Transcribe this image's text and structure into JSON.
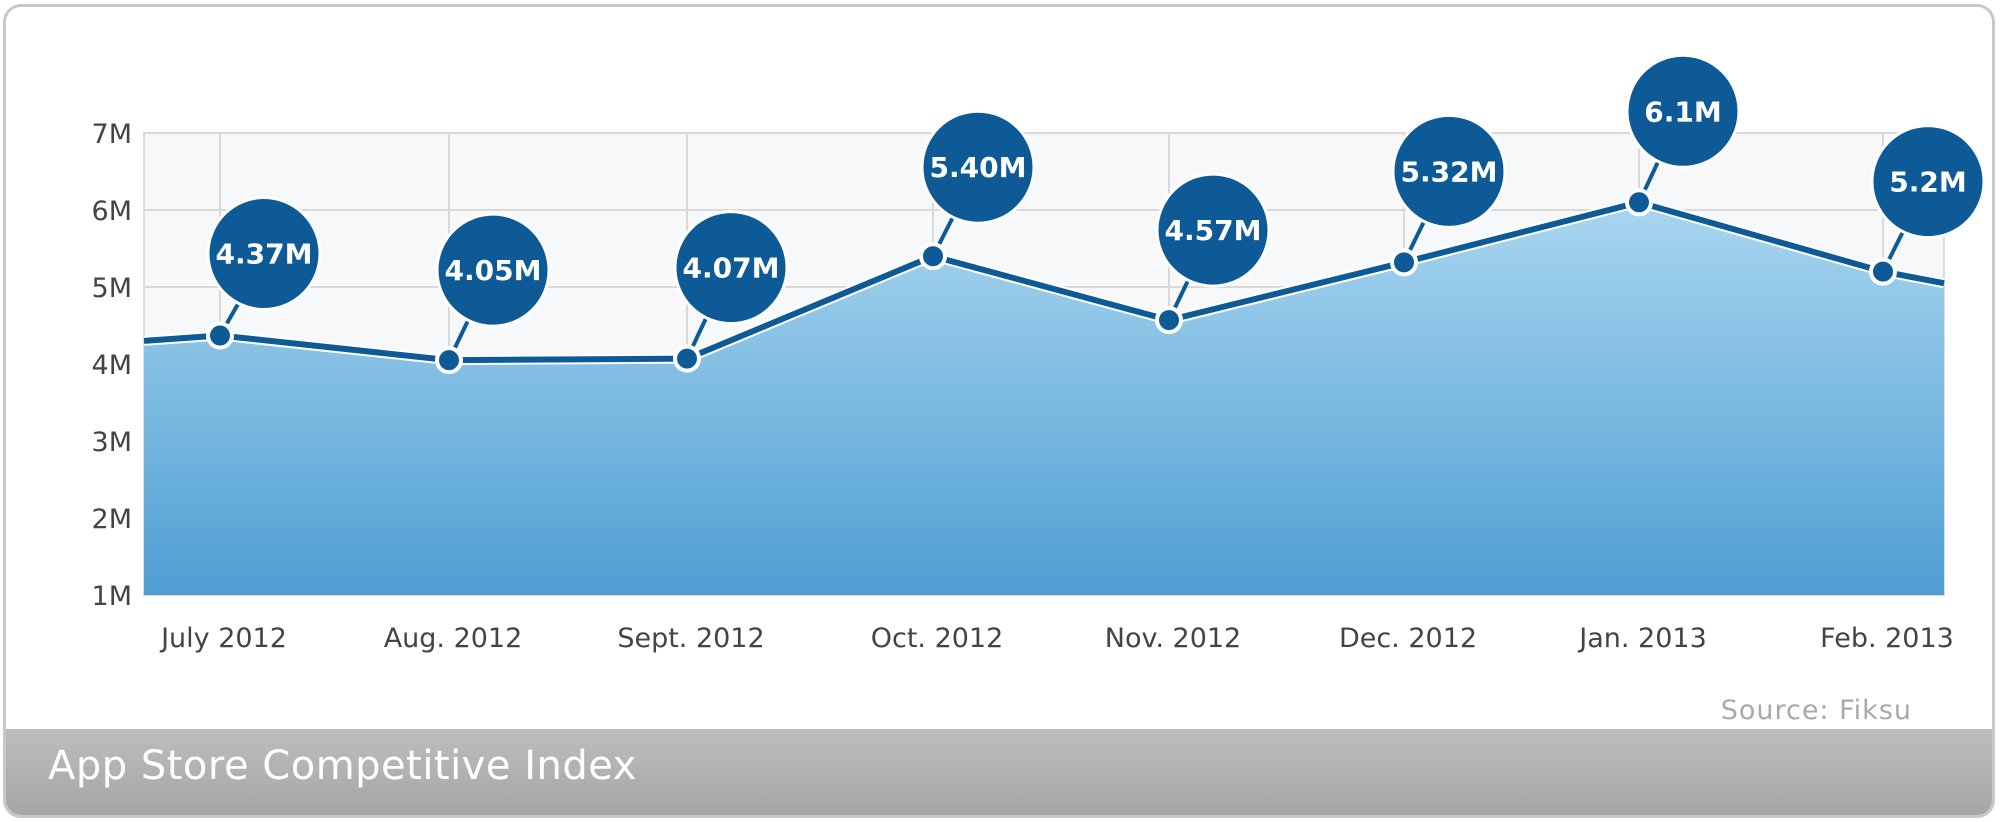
{
  "chart_data": {
    "type": "area",
    "title": "App Store Competitive Index",
    "source": "Source: Fiksu",
    "categories": [
      "July 2012",
      "Aug. 2012",
      "Sept. 2012",
      "Oct. 2012",
      "Nov. 2012",
      "Dec. 2012",
      "Jan. 2013",
      "Feb. 2013"
    ],
    "values": [
      4.37,
      4.05,
      4.07,
      5.4,
      4.57,
      5.32,
      6.1,
      5.2
    ],
    "data_labels": [
      "4.37M",
      "4.05M",
      "4.07M",
      "5.40M",
      "4.57M",
      "5.32M",
      "6.1M",
      "5.2M"
    ],
    "y_ticks": [
      "1M",
      "2M",
      "3M",
      "4M",
      "5M",
      "6M",
      "7M"
    ],
    "y_tick_values": [
      1,
      2,
      3,
      4,
      5,
      6,
      7
    ],
    "ylim": [
      1,
      7
    ],
    "start_value": 4.3,
    "end_value": 5.05,
    "grid": true,
    "colors": {
      "line": "#0d5a96",
      "bubble": "#0d5a96",
      "area_top": "#a9d6ef",
      "area_bottom": "#4f9ed3",
      "title_bar": "#b1b1b1",
      "plot_background": "#f7f8fa"
    }
  }
}
